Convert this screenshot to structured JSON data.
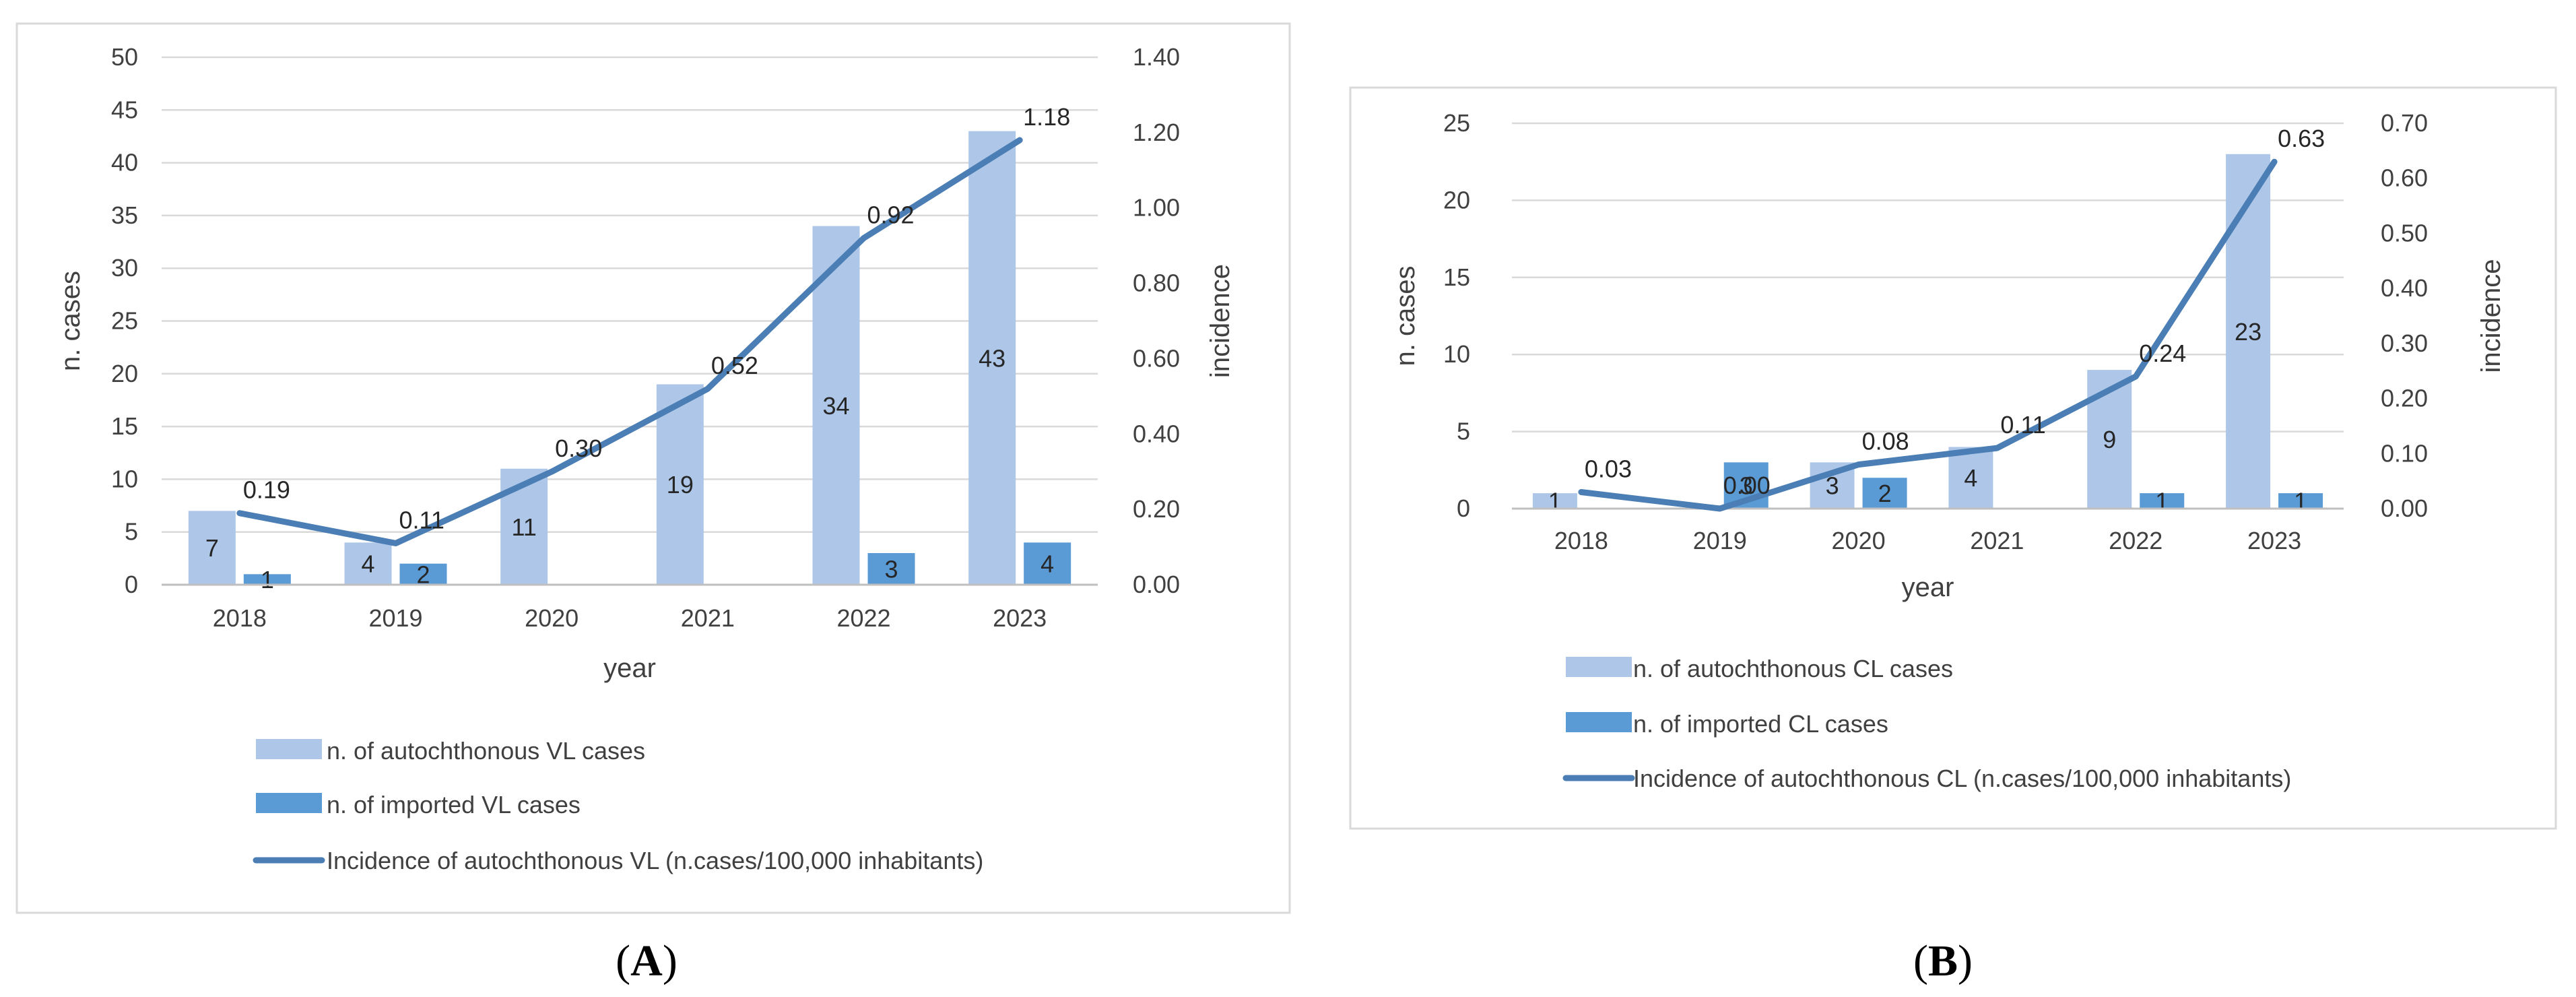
{
  "chart_data": [
    {
      "panel": "(A)",
      "panel_label": {
        "open": "(",
        "letter": "A",
        "close": ")"
      },
      "type": "bar",
      "categories": [
        "2018",
        "2019",
        "2020",
        "2021",
        "2022",
        "2023"
      ],
      "series": [
        {
          "name": "n. of autochthonous VL cases",
          "type": "bar",
          "axis": "left",
          "color": "#aec7e8",
          "values": [
            7,
            4,
            11,
            19,
            34,
            43
          ]
        },
        {
          "name": "n. of imported VL cases",
          "type": "bar",
          "axis": "left",
          "color": "#5b9bd5",
          "values": [
            1,
            2,
            0,
            0,
            3,
            4
          ]
        },
        {
          "name": "Incidence of autochthonous VL (n.cases/100,000 inhabitants)",
          "type": "line",
          "axis": "right",
          "color": "#4a7eb4",
          "values": [
            0.19,
            0.11,
            0.3,
            0.52,
            0.92,
            1.18
          ]
        }
      ],
      "bar_labels": [
        [
          "7",
          "4",
          "11",
          "19",
          "34",
          "43"
        ],
        [
          "1",
          "2",
          "",
          "",
          "3",
          "4"
        ]
      ],
      "line_labels": [
        "0.19",
        "0.11",
        "0.30",
        "0.52",
        "0.92",
        "1.18"
      ],
      "xlabel": "year",
      "ylabel": "n. cases",
      "y2label": "incidence",
      "ylim": [
        0,
        50
      ],
      "y2lim": [
        0,
        1.4
      ],
      "yticks": [
        "0",
        "5",
        "10",
        "15",
        "20",
        "25",
        "30",
        "35",
        "40",
        "45",
        "50"
      ],
      "y2ticks": [
        "0.00",
        "0.20",
        "0.40",
        "0.60",
        "0.80",
        "1.00",
        "1.20",
        "1.40"
      ],
      "grid": true,
      "legend_position": "bottom"
    },
    {
      "panel": "(B)",
      "panel_label": {
        "open": "(",
        "letter": "B",
        "close": ")"
      },
      "type": "bar",
      "categories": [
        "2018",
        "2019",
        "2020",
        "2021",
        "2022",
        "2023"
      ],
      "series": [
        {
          "name": "n. of autochthonous CL cases",
          "type": "bar",
          "axis": "left",
          "color": "#aec7e8",
          "values": [
            1,
            0,
            3,
            4,
            9,
            23
          ]
        },
        {
          "name": "n. of imported CL cases",
          "type": "bar",
          "axis": "left",
          "color": "#5b9bd5",
          "values": [
            0,
            3,
            2,
            0,
            1,
            1
          ]
        },
        {
          "name": "Incidence of autochthonous CL (n.cases/100,000 inhabitants)",
          "type": "line",
          "axis": "right",
          "color": "#4a7eb4",
          "values": [
            0.03,
            0.0,
            0.08,
            0.11,
            0.24,
            0.63
          ]
        }
      ],
      "bar_labels": [
        [
          "1",
          "",
          "3",
          "4",
          "9",
          "23"
        ],
        [
          "",
          "3",
          "2",
          "",
          "1",
          "1"
        ]
      ],
      "line_labels": [
        "0.03",
        "0.00",
        "0.08",
        "0.11",
        "0.24",
        "0.63"
      ],
      "xlabel": "year",
      "ylabel": "n. cases",
      "y2label": "incidence",
      "ylim": [
        0,
        25
      ],
      "y2lim": [
        0,
        0.7
      ],
      "yticks": [
        "0",
        "5",
        "10",
        "15",
        "20",
        "25"
      ],
      "y2ticks": [
        "0.00",
        "0.10",
        "0.20",
        "0.30",
        "0.40",
        "0.50",
        "0.60",
        "0.70"
      ],
      "grid": true,
      "legend_position": "bottom"
    }
  ]
}
